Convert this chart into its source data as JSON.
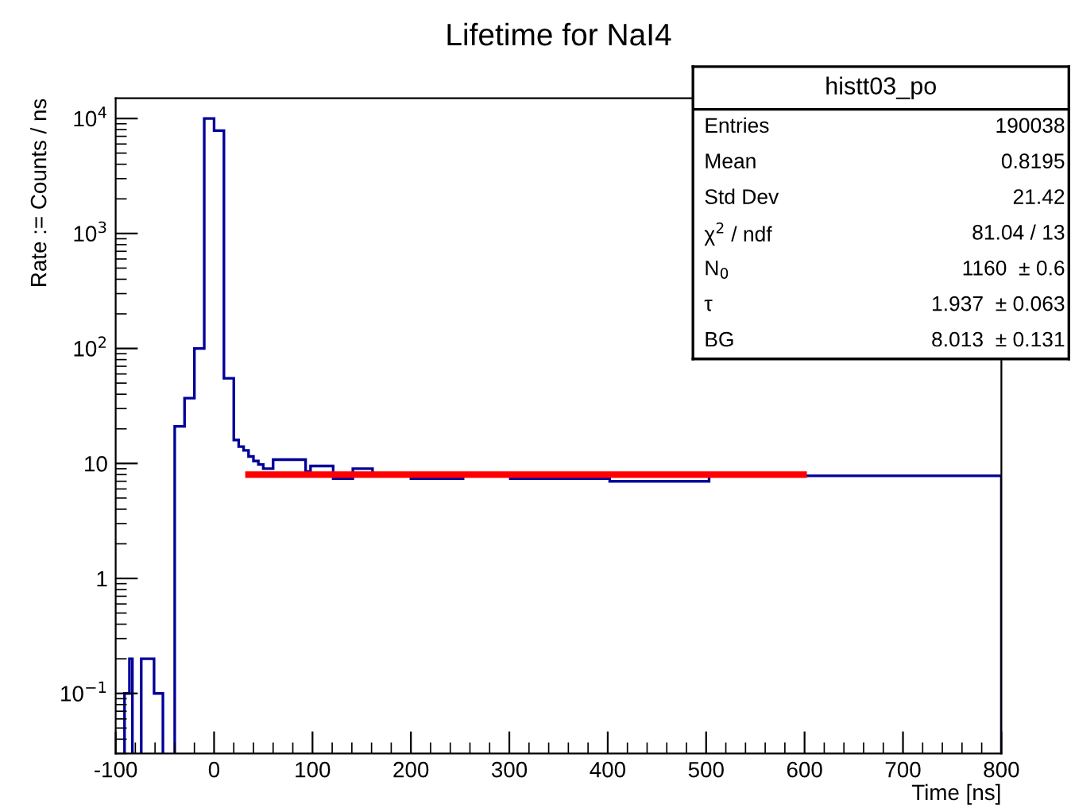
{
  "chart_data": {
    "type": "histogram",
    "title": "Lifetime for NaI4",
    "xlabel": "Time [ns]",
    "ylabel": "Rate := Counts / ns",
    "log": "y",
    "grid": false,
    "xlim": [
      -100,
      800
    ],
    "xticks": [
      -100,
      0,
      100,
      200,
      300,
      400,
      500,
      600,
      700,
      800
    ],
    "ylim": [
      0.03,
      15000
    ],
    "yticks": [
      {
        "value": 0.1,
        "label": "10$^{−1}$"
      },
      1,
      10,
      {
        "value": 100,
        "label": "10$^{2}$"
      },
      {
        "value": 1000,
        "label": "10$^{3}$"
      },
      {
        "value": 10000,
        "label": "10$^{4}$"
      }
    ],
    "series": [
      {
        "color": "#000099",
        "bins": [
          -91,
          -86,
          -83,
          -74,
          -61,
          -52,
          -40,
          -30,
          -20,
          -10,
          0,
          10,
          20,
          25,
          30,
          35,
          40,
          45,
          50,
          55,
          60,
          93,
          98,
          121,
          141,
          161,
          191,
          200,
          253,
          301,
          402,
          503,
          599,
          800
        ],
        "values": [
          0.1,
          0.2,
          null,
          0.2,
          0.1,
          null,
          21,
          37,
          100,
          10000,
          7850,
          55,
          16,
          14,
          13,
          11.5,
          10.5,
          9.8,
          9,
          9,
          10.8,
          8.5,
          9.5,
          7.4,
          9.0,
          7.9,
          8,
          7.4,
          7.9,
          7.4,
          7.0,
          7.9,
          7.8
        ]
      },
      {
        "type": "line",
        "color": "#ff0000",
        "x": [
          35,
          599
        ],
        "values": [
          8.0,
          8.0
        ]
      }
    ],
    "annotations": [
      "histt03_po",
      "Entries",
      "190038",
      "Mean",
      "0.8195",
      "Std Dev",
      "21.42",
      "χ$^{2}$ / ndf",
      "81.04 / 13",
      "N$_{0}$",
      "1160  ± 0.6",
      "τ",
      "1.937  ± 0.063",
      "BG",
      "8.013  ± 0.131"
    ]
  }
}
